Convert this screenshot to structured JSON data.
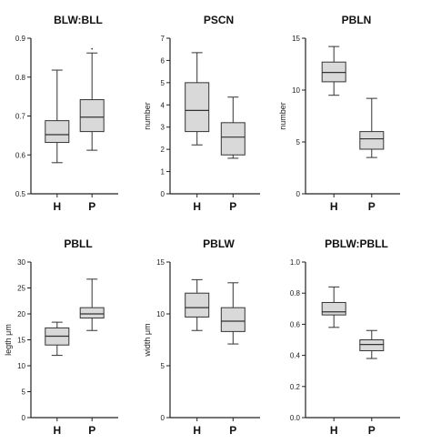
{
  "style": {
    "box_fill": "#d9d9d9",
    "box_stroke": "#333333",
    "axis_color": "#222222"
  },
  "chart_data": [
    {
      "type": "box",
      "title": "BLW:BLL",
      "ylabel": "",
      "ylim": [
        0.5,
        0.9
      ],
      "yticks": [
        "0.5",
        "0.6",
        "0.7",
        "0.8",
        "0.9"
      ],
      "categories": [
        "H",
        "P"
      ],
      "boxes": [
        {
          "category": "H",
          "min": 0.58,
          "q1": 0.632,
          "median": 0.652,
          "q3": 0.688,
          "max": 0.818
        },
        {
          "category": "P",
          "min": 0.612,
          "q1": 0.66,
          "median": 0.697,
          "q3": 0.742,
          "max": 0.862
        }
      ],
      "annotations": [
        {
          "text": "•",
          "category": "P",
          "y": 0.874
        }
      ]
    },
    {
      "type": "box",
      "title": "PSCN",
      "ylabel": "number",
      "ylim": [
        0,
        7
      ],
      "yticks": [
        "0",
        "1",
        "2",
        "3",
        "4",
        "5",
        "6",
        "7"
      ],
      "categories": [
        "H",
        "P"
      ],
      "boxes": [
        {
          "category": "H",
          "min": 2.2,
          "q1": 2.8,
          "median": 3.75,
          "q3": 5.0,
          "max": 6.35
        },
        {
          "category": "P",
          "min": 1.6,
          "q1": 1.75,
          "median": 2.55,
          "q3": 3.2,
          "max": 4.35
        }
      ]
    },
    {
      "type": "box",
      "title": "PBLN",
      "ylabel": "number",
      "ylim": [
        0,
        15
      ],
      "yticks": [
        "0",
        "5",
        "10",
        "15"
      ],
      "categories": [
        "H",
        "P"
      ],
      "boxes": [
        {
          "category": "H",
          "min": 9.5,
          "q1": 10.8,
          "median": 11.7,
          "q3": 12.7,
          "max": 14.2
        },
        {
          "category": "P",
          "min": 3.5,
          "q1": 4.3,
          "median": 5.3,
          "q3": 6.0,
          "max": 9.2
        }
      ]
    },
    {
      "type": "box",
      "title": "PBLL",
      "ylabel": "legth μm",
      "ylim": [
        0,
        30
      ],
      "yticks": [
        "0",
        "5",
        "10",
        "15",
        "20",
        "25",
        "30"
      ],
      "categories": [
        "H",
        "P"
      ],
      "boxes": [
        {
          "category": "H",
          "min": 12.0,
          "q1": 14.0,
          "median": 15.7,
          "q3": 17.3,
          "max": 18.4
        },
        {
          "category": "P",
          "min": 16.8,
          "q1": 19.2,
          "median": 20.0,
          "q3": 21.2,
          "max": 26.7
        }
      ]
    },
    {
      "type": "box",
      "title": "PBLW",
      "ylabel": "width μm",
      "ylim": [
        0,
        15
      ],
      "yticks": [
        "0",
        "5",
        "10",
        "15"
      ],
      "categories": [
        "H",
        "P"
      ],
      "boxes": [
        {
          "category": "H",
          "min": 8.4,
          "q1": 9.7,
          "median": 10.6,
          "q3": 12.0,
          "max": 13.3
        },
        {
          "category": "P",
          "min": 7.1,
          "q1": 8.3,
          "median": 9.3,
          "q3": 10.6,
          "max": 13.0
        }
      ]
    },
    {
      "type": "box",
      "title": "PBLW:PBLL",
      "ylabel": "",
      "ylim": [
        0,
        1.0
      ],
      "yticks": [
        "0.0",
        "0.2",
        "0.4",
        "0.6",
        "0.8",
        "1.0"
      ],
      "categories": [
        "H",
        "P"
      ],
      "boxes": [
        {
          "category": "H",
          "min": 0.58,
          "q1": 0.66,
          "median": 0.68,
          "q3": 0.74,
          "max": 0.84
        },
        {
          "category": "P",
          "min": 0.38,
          "q1": 0.43,
          "median": 0.47,
          "q3": 0.5,
          "max": 0.56
        }
      ]
    }
  ]
}
